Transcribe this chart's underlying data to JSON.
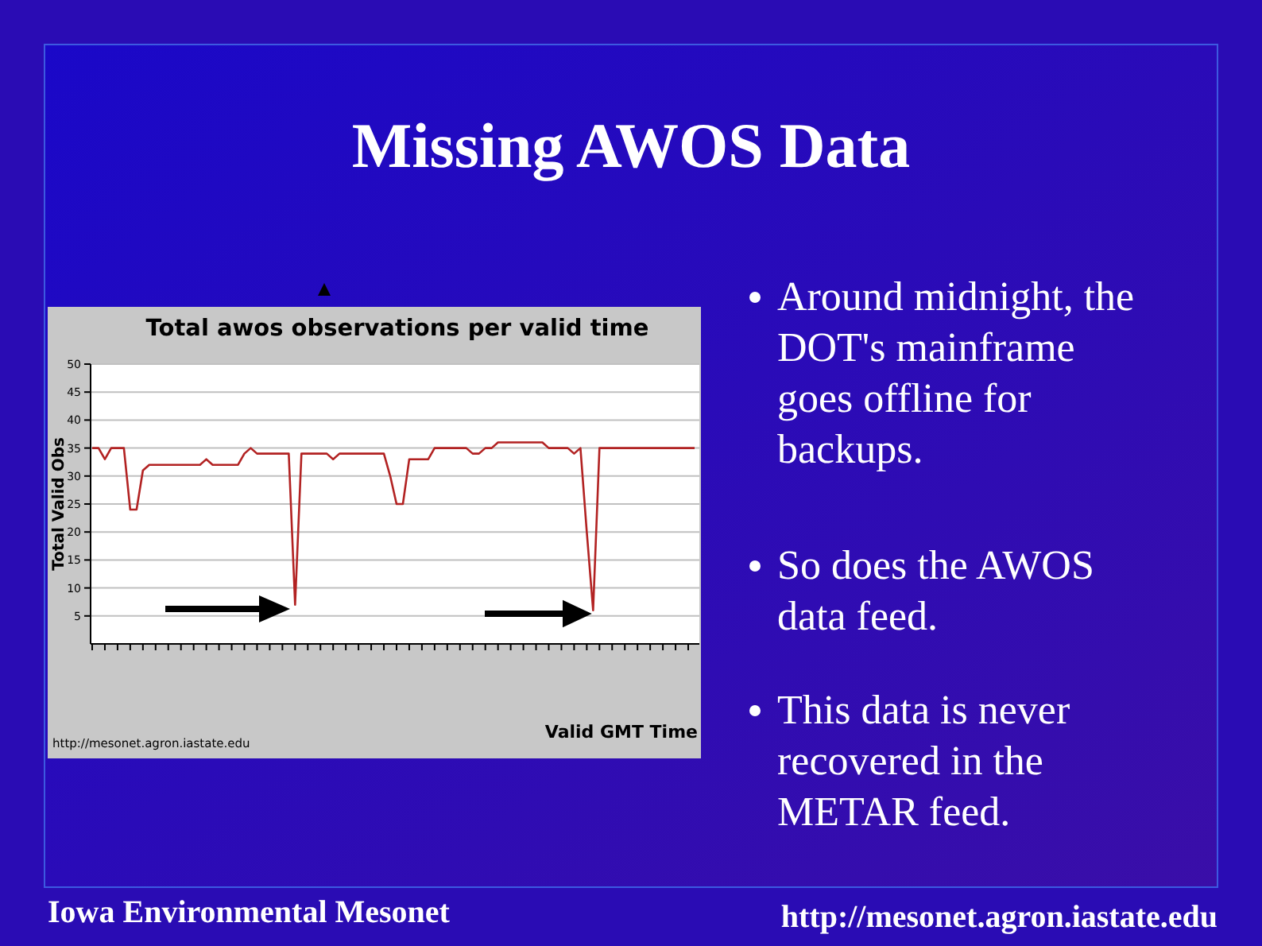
{
  "chart_data": {
    "type": "line",
    "title": "Missing AWOS Data",
    "subtitle": "Total awos observations per valid time",
    "ylabel": "Total Valid Obs",
    "xlabel": "Valid GMT Time",
    "categories": [
      null,
      null,
      null,
      null,
      null,
      null,
      null,
      null,
      null,
      null,
      null,
      null,
      null,
      null,
      null,
      null,
      null,
      null,
      null,
      null,
      null,
      null,
      null,
      null,
      null,
      null,
      null,
      null,
      null,
      null,
      null,
      null,
      null,
      null,
      null,
      null,
      null,
      null,
      null,
      null,
      null,
      null,
      null,
      null,
      null,
      null,
      null,
      null,
      null,
      null,
      null,
      null,
      null,
      null,
      null,
      null,
      null,
      null,
      null,
      null,
      null,
      null,
      null,
      null,
      null,
      null,
      null,
      null,
      null,
      null,
      null,
      null,
      null,
      null,
      null,
      null,
      null,
      null,
      null,
      null,
      null,
      null,
      null,
      null,
      null,
      null,
      null,
      null,
      null,
      null,
      null,
      null,
      null,
      null,
      null,
      null
    ],
    "series": [
      {
        "color": "#b22222",
        "values": [
          35,
          35,
          33,
          35,
          35,
          35,
          24,
          24,
          31,
          32,
          32,
          32,
          32,
          32,
          32,
          32,
          32,
          32,
          33,
          32,
          32,
          32,
          32,
          32,
          34,
          35,
          34,
          34,
          34,
          34,
          34,
          34,
          7,
          34,
          34,
          34,
          34,
          34,
          33,
          34,
          34,
          34,
          34,
          34,
          34,
          34,
          34,
          30,
          25,
          25,
          33,
          33,
          33,
          33,
          35,
          35,
          35,
          35,
          35,
          35,
          34,
          34,
          35,
          35,
          36,
          36,
          36,
          36,
          36,
          36,
          36,
          36,
          35,
          35,
          35,
          35,
          34,
          35,
          20,
          6,
          35,
          35,
          35,
          35,
          35,
          35,
          35,
          35,
          35,
          35,
          35,
          35,
          35,
          35,
          35,
          35
        ]
      }
    ],
    "ylim": [
      0,
      50
    ],
    "yticks": [
      5,
      10,
      15,
      20,
      25,
      30,
      35,
      40,
      45,
      50
    ],
    "grid": "y",
    "marker": "none",
    "line_style": "solid",
    "annotations": [
      "Around midnight, the DOT's mainframe goes offline for backups.",
      "So does the AWOS data feed.",
      "This data is never recovered in the METAR feed.",
      "http://mesonet.agron.iastate.edu",
      "Iowa Environmental Mesonet",
      "http://mesonet.agron.iastate.edu"
    ]
  }
}
